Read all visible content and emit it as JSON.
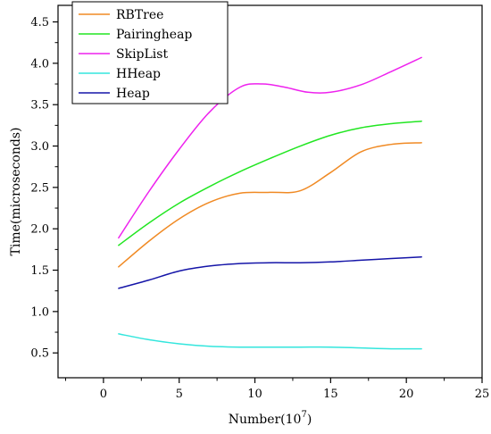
{
  "chart_data": {
    "type": "line",
    "xlabel": "Number(10",
    "xlabel_exp": "7",
    "xlabel_close": ")",
    "ylabel": "Time(microseconds)",
    "xlim": [
      -3,
      25
    ],
    "ylim": [
      0.2,
      4.7
    ],
    "xticks": [
      0,
      5,
      10,
      15,
      20,
      25
    ],
    "yticks": [
      0.5,
      1.0,
      1.5,
      2.0,
      2.5,
      3.0,
      3.5,
      4.0,
      4.5
    ],
    "ytick_labels": [
      "0.5",
      "1.0",
      "1.5",
      "2.0",
      "2.5",
      "3.0",
      "3.5",
      "4.0",
      "4.5"
    ],
    "grid": false,
    "legend": "top-left",
    "series": [
      {
        "name": "RBTree",
        "color": "#F08A24",
        "x": [
          1,
          3,
          5,
          7,
          9,
          11,
          13,
          15,
          17,
          19,
          21
        ],
        "values": [
          1.54,
          1.85,
          2.12,
          2.32,
          2.43,
          2.44,
          2.46,
          2.68,
          2.93,
          3.02,
          3.04
        ]
      },
      {
        "name": "Pairingheap",
        "color": "#22E622",
        "x": [
          1,
          3,
          5,
          7,
          9,
          11,
          13,
          15,
          17,
          19,
          21
        ],
        "values": [
          1.8,
          2.07,
          2.31,
          2.51,
          2.69,
          2.85,
          3.0,
          3.13,
          3.22,
          3.27,
          3.3
        ]
      },
      {
        "name": "SkipList",
        "color": "#EE22EE",
        "x": [
          1,
          3,
          5,
          7,
          9,
          10.5,
          12,
          13.5,
          15,
          17,
          19,
          21
        ],
        "values": [
          1.89,
          2.45,
          2.96,
          3.41,
          3.71,
          3.75,
          3.71,
          3.65,
          3.65,
          3.74,
          3.9,
          4.07
        ]
      },
      {
        "name": "HHeap",
        "color": "#33E6DD",
        "x": [
          1,
          3,
          5,
          7,
          9,
          11,
          13,
          15,
          17,
          19,
          21
        ],
        "values": [
          0.73,
          0.66,
          0.61,
          0.58,
          0.57,
          0.57,
          0.57,
          0.57,
          0.56,
          0.55,
          0.55
        ]
      },
      {
        "name": "Heap",
        "color": "#1515A8",
        "x": [
          1,
          3,
          5,
          7,
          9,
          11,
          13,
          15,
          17,
          19,
          21
        ],
        "values": [
          1.28,
          1.38,
          1.49,
          1.55,
          1.58,
          1.59,
          1.59,
          1.6,
          1.62,
          1.64,
          1.66
        ]
      }
    ]
  }
}
